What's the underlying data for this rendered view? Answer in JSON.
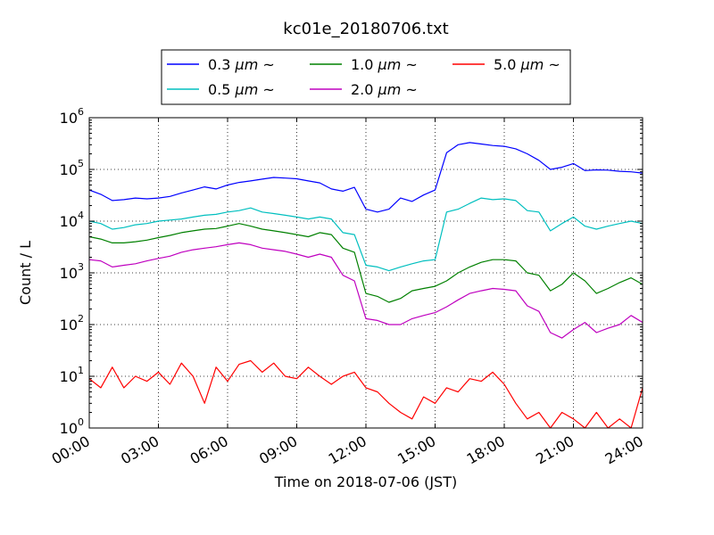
{
  "chart_data": {
    "type": "line",
    "title": "kc01e_20180706.txt",
    "xlabel": "Time on 2018-07-06 (JST)",
    "ylabel": "Count / L",
    "x_unit": "hours",
    "xlim": [
      0,
      24
    ],
    "x_ticks": [
      {
        "value": 0,
        "label": "00:00"
      },
      {
        "value": 3,
        "label": "03:00"
      },
      {
        "value": 6,
        "label": "06:00"
      },
      {
        "value": 9,
        "label": "09:00"
      },
      {
        "value": 12,
        "label": "12:00"
      },
      {
        "value": 15,
        "label": "15:00"
      },
      {
        "value": 18,
        "label": "18:00"
      },
      {
        "value": 21,
        "label": "21:00"
      },
      {
        "value": 24,
        "label": "24:00"
      }
    ],
    "yscale": "log",
    "ylim": [
      1,
      1000000
    ],
    "y_ticks": [
      {
        "value": 1,
        "base": "10",
        "exp": "0"
      },
      {
        "value": 10,
        "base": "10",
        "exp": "1"
      },
      {
        "value": 100,
        "base": "10",
        "exp": "2"
      },
      {
        "value": 1000,
        "base": "10",
        "exp": "3"
      },
      {
        "value": 10000,
        "base": "10",
        "exp": "4"
      },
      {
        "value": 100000,
        "base": "10",
        "exp": "5"
      },
      {
        "value": 1000000,
        "base": "10",
        "exp": "6"
      }
    ],
    "grid": true,
    "legend_position": "top-center",
    "series": [
      {
        "name": "0.3 μm ~",
        "legend_num": "0.3 ",
        "legend_unit": "μm",
        "legend_suffix": " ~",
        "color": "#0000ff",
        "x": [
          0,
          0.5,
          1,
          1.5,
          2,
          2.5,
          3,
          3.5,
          4,
          4.5,
          5,
          5.5,
          6,
          6.5,
          7,
          7.5,
          8,
          8.5,
          9,
          9.5,
          10,
          10.5,
          11,
          11.5,
          12,
          12.5,
          13,
          13.5,
          14,
          14.5,
          15,
          15.5,
          16,
          16.5,
          17,
          17.5,
          18,
          18.5,
          19,
          19.5,
          20,
          20.5,
          21,
          21.5,
          22,
          22.5,
          23,
          23.5,
          24
        ],
        "values": [
          40000,
          33000,
          25000,
          26000,
          28000,
          27000,
          28000,
          30000,
          35000,
          40000,
          46000,
          42000,
          50000,
          56000,
          60000,
          65000,
          70000,
          68000,
          66000,
          60000,
          55000,
          42000,
          38000,
          45000,
          17000,
          15000,
          17000,
          28000,
          24000,
          32000,
          40000,
          210000,
          300000,
          330000,
          310000,
          290000,
          280000,
          250000,
          200000,
          150000,
          100000,
          110000,
          130000,
          95000,
          98000,
          97000,
          92000,
          90000,
          85000
        ]
      },
      {
        "name": "0.5 μm ~",
        "legend_num": "0.5 ",
        "legend_unit": "μm",
        "legend_suffix": " ~",
        "color": "#00bfbf",
        "x": [
          0,
          0.5,
          1,
          1.5,
          2,
          2.5,
          3,
          3.5,
          4,
          4.5,
          5,
          5.5,
          6,
          6.5,
          7,
          7.5,
          8,
          8.5,
          9,
          9.5,
          10,
          10.5,
          11,
          11.5,
          12,
          12.5,
          13,
          13.5,
          14,
          14.5,
          15,
          15.5,
          16,
          16.5,
          17,
          17.5,
          18,
          18.5,
          19,
          19.5,
          20,
          20.5,
          21,
          21.5,
          22,
          22.5,
          23,
          23.5,
          24
        ],
        "values": [
          10000,
          9000,
          7000,
          7500,
          8500,
          9000,
          10000,
          10500,
          11000,
          12000,
          13000,
          13500,
          15000,
          16000,
          18000,
          15000,
          14000,
          13000,
          12000,
          11000,
          12000,
          11000,
          6000,
          5500,
          1400,
          1300,
          1100,
          1300,
          1500,
          1700,
          1800,
          15000,
          17000,
          22000,
          28000,
          26000,
          27000,
          25000,
          16000,
          15000,
          6500,
          9000,
          12000,
          8000,
          7000,
          8000,
          9000,
          10000,
          9000
        ]
      },
      {
        "name": "1.0 μm ~",
        "legend_num": "1.0 ",
        "legend_unit": "μm",
        "legend_suffix": " ~",
        "color": "#008000",
        "x": [
          0,
          0.5,
          1,
          1.5,
          2,
          2.5,
          3,
          3.5,
          4,
          4.5,
          5,
          5.5,
          6,
          6.5,
          7,
          7.5,
          8,
          8.5,
          9,
          9.5,
          10,
          10.5,
          11,
          11.5,
          12,
          12.5,
          13,
          13.5,
          14,
          14.5,
          15,
          15.5,
          16,
          16.5,
          17,
          17.5,
          18,
          18.5,
          19,
          19.5,
          20,
          20.5,
          21,
          21.5,
          22,
          22.5,
          23,
          23.5,
          24
        ],
        "values": [
          5000,
          4500,
          3800,
          3800,
          4000,
          4300,
          4800,
          5300,
          6000,
          6500,
          7000,
          7200,
          8000,
          9000,
          8000,
          7000,
          6500,
          6000,
          5500,
          5000,
          6000,
          5500,
          3000,
          2500,
          400,
          350,
          270,
          320,
          450,
          500,
          550,
          700,
          1000,
          1300,
          1600,
          1800,
          1800,
          1700,
          1000,
          900,
          450,
          600,
          1000,
          700,
          400,
          500,
          650,
          800,
          600
        ]
      },
      {
        "name": "2.0 μm ~",
        "legend_num": "2.0 ",
        "legend_unit": "μm",
        "legend_suffix": " ~",
        "color": "#bf00bf",
        "x": [
          0,
          0.5,
          1,
          1.5,
          2,
          2.5,
          3,
          3.5,
          4,
          4.5,
          5,
          5.5,
          6,
          6.5,
          7,
          7.5,
          8,
          8.5,
          9,
          9.5,
          10,
          10.5,
          11,
          11.5,
          12,
          12.5,
          13,
          13.5,
          14,
          14.5,
          15,
          15.5,
          16,
          16.5,
          17,
          17.5,
          18,
          18.5,
          19,
          19.5,
          20,
          20.5,
          21,
          21.5,
          22,
          22.5,
          23,
          23.5,
          24
        ],
        "values": [
          1800,
          1700,
          1300,
          1400,
          1500,
          1700,
          1900,
          2100,
          2500,
          2800,
          3000,
          3200,
          3500,
          3800,
          3500,
          3000,
          2800,
          2600,
          2300,
          2000,
          2300,
          2000,
          900,
          700,
          130,
          120,
          100,
          100,
          130,
          150,
          170,
          220,
          300,
          400,
          450,
          500,
          480,
          450,
          230,
          180,
          70,
          55,
          80,
          110,
          70,
          85,
          100,
          150,
          110
        ]
      },
      {
        "name": "5.0 μm ~",
        "legend_num": "5.0 ",
        "legend_unit": "μm",
        "legend_suffix": " ~",
        "color": "#ff0000",
        "x": [
          0,
          0.5,
          1,
          1.5,
          2,
          2.5,
          3,
          3.5,
          4,
          4.5,
          5,
          5.5,
          6,
          6.5,
          7,
          7.5,
          8,
          8.5,
          9,
          9.5,
          10,
          10.5,
          11,
          11.5,
          12,
          12.5,
          13,
          13.5,
          14,
          14.5,
          15,
          15.5,
          16,
          16.5,
          17,
          17.5,
          18,
          18.5,
          19,
          19.5,
          20,
          20.5,
          21,
          21.5,
          22,
          22.5,
          23,
          23.5,
          24
        ],
        "values": [
          9,
          6,
          15,
          6,
          10,
          8,
          12,
          7,
          18,
          10,
          3,
          15,
          8,
          17,
          20,
          12,
          18,
          10,
          9,
          15,
          10,
          7,
          10,
          12,
          6,
          5,
          3,
          2,
          1.5,
          4,
          3,
          6,
          5,
          9,
          8,
          12,
          7,
          3,
          1.5,
          2,
          1,
          2,
          1.5,
          1,
          2,
          1,
          1.5,
          1,
          6
        ]
      }
    ]
  }
}
